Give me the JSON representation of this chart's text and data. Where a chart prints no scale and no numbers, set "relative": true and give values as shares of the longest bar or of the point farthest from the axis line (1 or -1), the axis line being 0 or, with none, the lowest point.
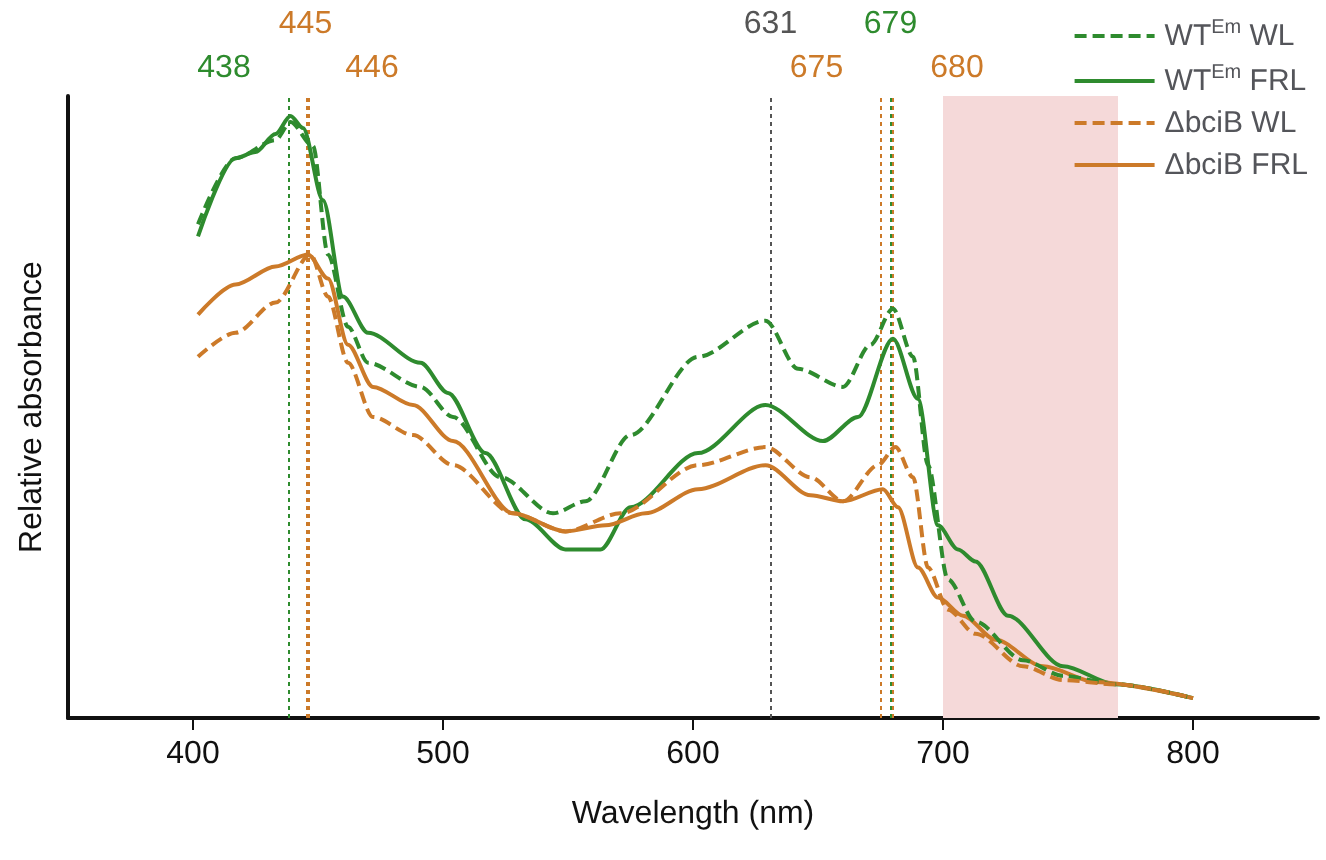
{
  "chart_data": {
    "type": "line",
    "relative": true,
    "xlabel": "Wavelength (nm)",
    "ylabel": "Relative absorbance",
    "xlim": [
      350,
      850
    ],
    "xticks": [
      400,
      500,
      600,
      700,
      800
    ],
    "legend": "top right",
    "grid": false,
    "marker": "none",
    "series": [
      {
        "name": "WT$^{Em}$ WL",
        "color": "#2e8b2e",
        "line_style": "dashed",
        "x": [
          402,
          417,
          433,
          439,
          448,
          454,
          462,
          470,
          491,
          504,
          523,
          544,
          557,
          575,
          602,
          629,
          642,
          660,
          671,
          680,
          688,
          694,
          702,
          713,
          732,
          748,
          769,
          800
        ],
        "values": [
          0.82,
          0.93,
          0.96,
          0.99,
          0.95,
          0.77,
          0.65,
          0.59,
          0.55,
          0.5,
          0.4,
          0.34,
          0.36,
          0.47,
          0.6,
          0.66,
          0.58,
          0.55,
          0.62,
          0.68,
          0.6,
          0.42,
          0.23,
          0.16,
          0.096,
          0.07,
          0.056,
          0.033
        ]
      },
      {
        "name": "WT$^{Em}$ FRL",
        "color": "#2e8b2e",
        "line_style": "solid",
        "x": [
          402,
          417,
          425,
          433,
          439,
          444,
          452,
          460,
          470,
          491,
          502,
          517,
          533,
          549,
          563,
          575,
          602,
          629,
          652,
          666,
          680,
          690,
          698,
          706,
          713,
          726,
          748,
          769,
          800
        ],
        "values": [
          0.8,
          0.93,
          0.94,
          0.97,
          1.0,
          0.98,
          0.86,
          0.7,
          0.64,
          0.59,
          0.54,
          0.44,
          0.33,
          0.28,
          0.28,
          0.35,
          0.44,
          0.52,
          0.46,
          0.5,
          0.63,
          0.53,
          0.32,
          0.28,
          0.26,
          0.17,
          0.086,
          0.056,
          0.033
        ]
      },
      {
        "name": "ΔbciB WL",
        "color": "#cc7a29",
        "line_style": "dashed",
        "x": [
          402,
          417,
          433,
          447,
          454,
          462,
          472,
          488,
          504,
          528,
          549,
          571,
          602,
          629,
          647,
          660,
          674,
          681,
          688,
          694,
          702,
          713,
          732,
          748,
          769,
          800
        ],
        "values": [
          0.6,
          0.64,
          0.69,
          0.77,
          0.7,
          0.59,
          0.5,
          0.47,
          0.42,
          0.34,
          0.31,
          0.34,
          0.42,
          0.45,
          0.4,
          0.36,
          0.42,
          0.45,
          0.4,
          0.25,
          0.18,
          0.14,
          0.086,
          0.063,
          0.056,
          0.033
        ]
      },
      {
        "name": "ΔbciB FRL",
        "color": "#cc7a29",
        "line_style": "solid",
        "x": [
          402,
          417,
          433,
          446,
          454,
          462,
          472,
          488,
          504,
          528,
          549,
          565,
          581,
          602,
          629,
          647,
          660,
          676,
          682,
          690,
          698,
          708,
          721,
          740,
          761,
          800
        ],
        "values": [
          0.67,
          0.72,
          0.75,
          0.77,
          0.73,
          0.62,
          0.55,
          0.52,
          0.46,
          0.34,
          0.31,
          0.32,
          0.34,
          0.38,
          0.42,
          0.37,
          0.36,
          0.38,
          0.35,
          0.25,
          0.2,
          0.17,
          0.13,
          0.086,
          0.06,
          0.033
        ]
      }
    ],
    "ref_lines": [
      {
        "axis": "x",
        "value": 438,
        "label": "438",
        "color": "#2e8b2e",
        "line_style": "dotted"
      },
      {
        "axis": "x",
        "value": 445,
        "label": "445",
        "color": "#cc7a29",
        "line_style": "dotted"
      },
      {
        "axis": "x",
        "value": 446,
        "label": "446",
        "color": "#cc7a29",
        "line_style": "dotted"
      },
      {
        "axis": "x",
        "value": 631,
        "label": "631",
        "color": "#555555",
        "line_style": "dotted"
      },
      {
        "axis": "x",
        "value": 675,
        "label": "675",
        "color": "#cc7a29",
        "line_style": "dotted"
      },
      {
        "axis": "x",
        "value": 679,
        "label": "679",
        "color": "#2e8b2e",
        "line_style": "dotted"
      },
      {
        "axis": "x",
        "value": 680,
        "label": "680",
        "color": "#cc7a29",
        "line_style": "dotted"
      }
    ],
    "bands": [
      {
        "axis": "x",
        "from": 700,
        "to": 770,
        "color": "#f5d9d9"
      }
    ]
  }
}
